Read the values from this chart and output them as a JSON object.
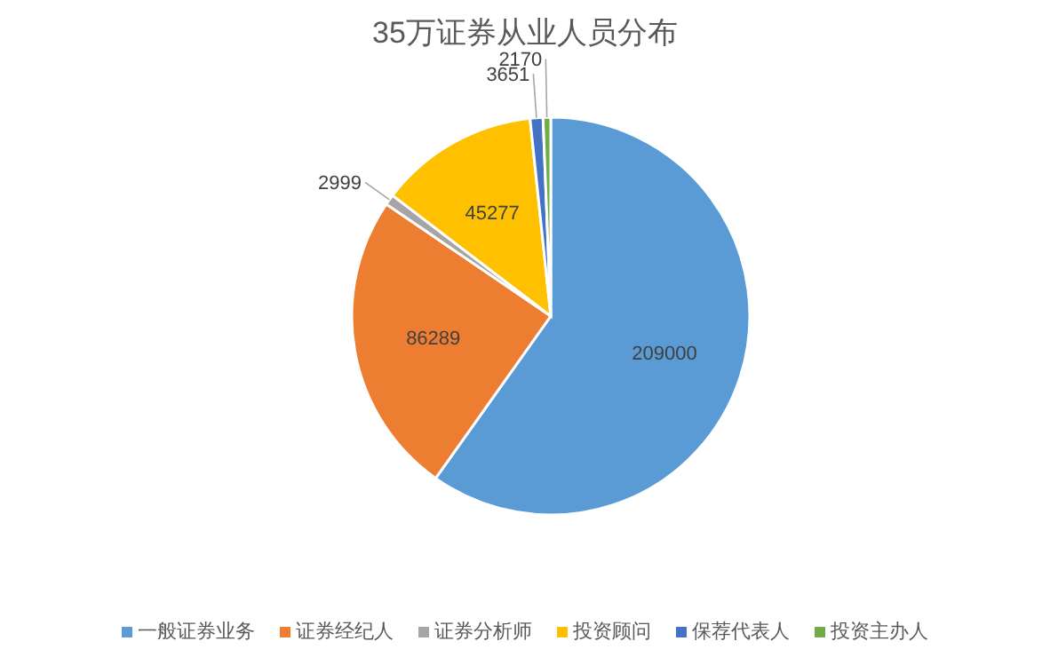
{
  "chart_data": {
    "type": "pie",
    "title": "35万证券从业人员分布",
    "categories": [
      "一般证券业务",
      "证券经纪人",
      "证券分析师",
      "投资顾问",
      "保荐代表人",
      "投资主办人"
    ],
    "values": [
      209000,
      86289,
      2999,
      45277,
      3651,
      2170
    ],
    "colors": [
      "#5b9bd5",
      "#ed7d31",
      "#a5a5a5",
      "#ffc000",
      "#4472c4",
      "#70ad47"
    ],
    "data_labels": true,
    "legend": "bottom"
  }
}
